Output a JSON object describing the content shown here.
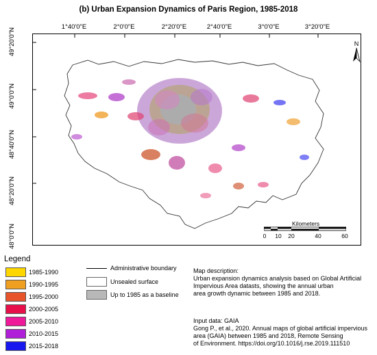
{
  "title": "(b)  Urban Expansion Dynamics of Paris Region, 1985-2018",
  "axes": {
    "longitude_labels": [
      "1°40'0\"E",
      "2°0'0\"E",
      "2°20'0\"E",
      "2°40'0\"E",
      "3°0'0\"E",
      "3°20'0\"E"
    ],
    "latitude_labels": [
      "49°20'0\"N",
      "49°0'0\"N",
      "48°40'0\"N",
      "48°20'0\"N",
      "48°0'0\"N"
    ]
  },
  "north_label": "N",
  "scalebar": {
    "title": "Kilometers",
    "labels": [
      "0",
      "10",
      "20",
      "40",
      "60"
    ]
  },
  "legend": {
    "title": "Legend",
    "items": [
      {
        "label": "1985-1990",
        "color": "#ffd700"
      },
      {
        "label": "1990-1995",
        "color": "#f0a020"
      },
      {
        "label": "1995-2000",
        "color": "#e8552a"
      },
      {
        "label": "2000-2005",
        "color": "#e8104a"
      },
      {
        "label": "2005-2010",
        "color": "#ef1a9a"
      },
      {
        "label": "2010-2015",
        "color": "#b020d8"
      },
      {
        "label": "2015-2018",
        "color": "#1818ee"
      }
    ],
    "symbols": {
      "boundary": "Administrative boundary",
      "unsealed": "Unsealed surface",
      "baseline": "Up to 1985 as a baseline",
      "baseline_color": "#b8b8b8"
    }
  },
  "description": {
    "heading": "Map description:",
    "lines": [
      "Urban expansion dynamics analysis based on Global Artificial",
      "Impervious Area datasts, showing the annual urban",
      "area growth dynamic between 1985 and 2018."
    ]
  },
  "input_data": {
    "heading": "Input data: GAIA",
    "lines": [
      "Gong P., et al., 2020. Annual maps of global artificial impervious",
      "area (GAIA) between 1985 and 2018, Remote Sensing",
      "of Environment. https://doi.org/10.1016/j.rse.2019.111510"
    ]
  }
}
